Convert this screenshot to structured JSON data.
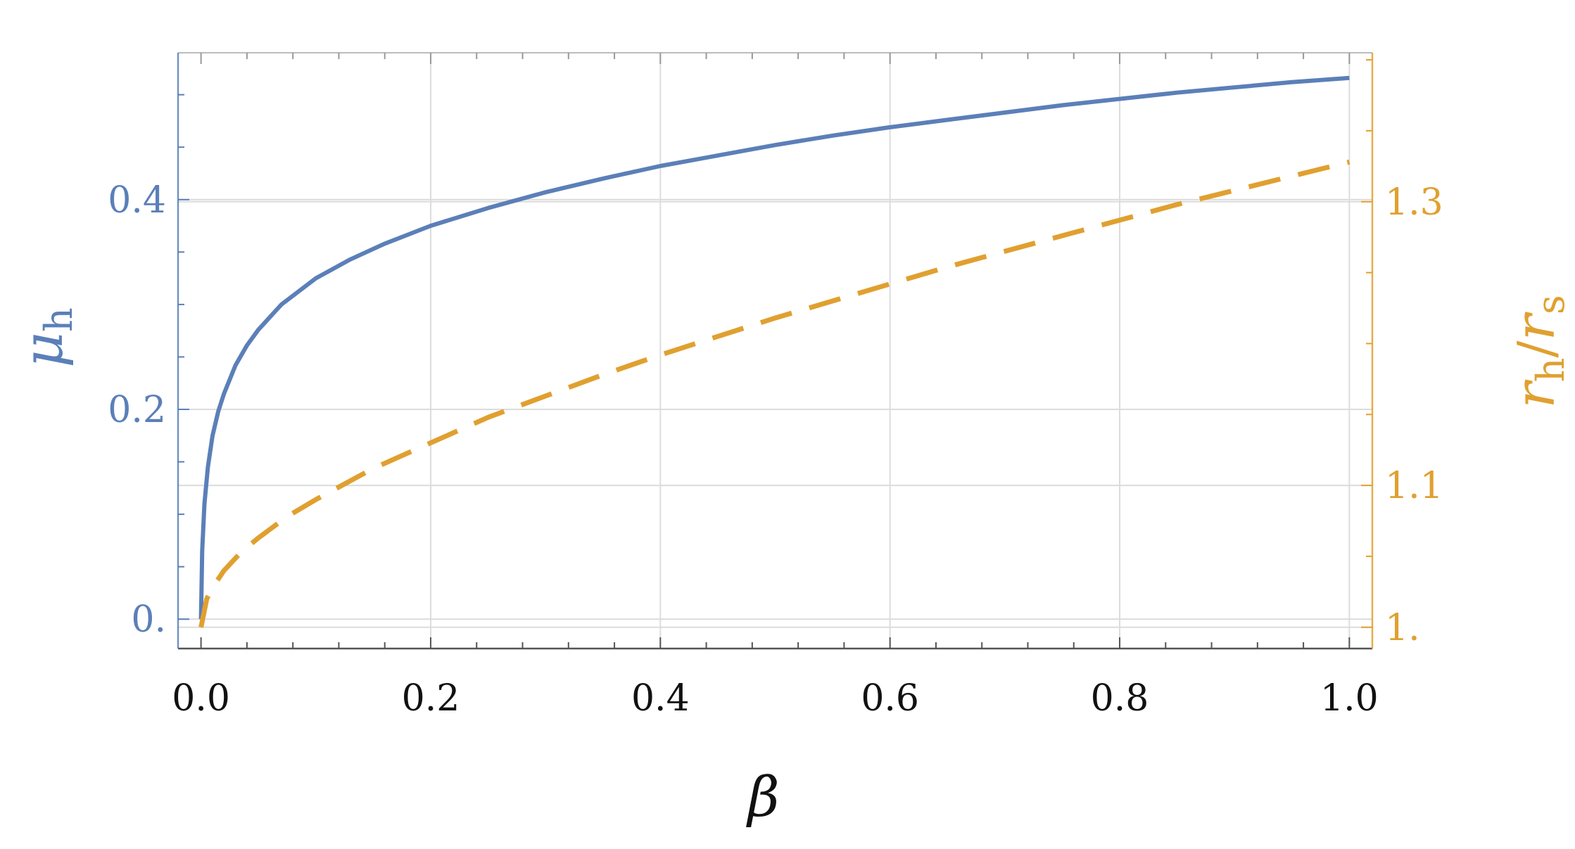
{
  "chart_data": {
    "type": "line",
    "title": "",
    "xlabel": "β",
    "ylabel_left": {
      "symbol": "μ",
      "subscript": "h"
    },
    "ylabel_right": {
      "num": "r",
      "num_sub": "h",
      "slash": "/",
      "den": "r",
      "den_sub": "s"
    },
    "xlim": [
      -0.02,
      1.02
    ],
    "ylim_left": [
      -0.028,
      0.54
    ],
    "ylim_right": [
      0.985,
      1.405
    ],
    "x_ticks": [
      0.0,
      0.2,
      0.4,
      0.6,
      0.8,
      1.0
    ],
    "x_tick_labels": [
      "0.0",
      "0.2",
      "0.4",
      "0.6",
      "0.8",
      "1.0"
    ],
    "y_left_ticks": [
      0.0,
      0.2,
      0.4
    ],
    "y_left_tick_labels": [
      "0.",
      "0.2",
      "0.4"
    ],
    "y_right_ticks": [
      1.0,
      1.1,
      1.3
    ],
    "y_right_tick_labels": [
      "1.",
      "1.1",
      "1.3"
    ],
    "grid": true,
    "series": [
      {
        "axis": "left",
        "style": "solid",
        "color": "#5b7fb8",
        "x": [
          0.0,
          0.001,
          0.003,
          0.006,
          0.01,
          0.015,
          0.02,
          0.03,
          0.04,
          0.05,
          0.07,
          0.1,
          0.13,
          0.16,
          0.2,
          0.25,
          0.3,
          0.35,
          0.4,
          0.45,
          0.5,
          0.55,
          0.6,
          0.65,
          0.7,
          0.75,
          0.8,
          0.85,
          0.9,
          0.95,
          1.0
        ],
        "y": [
          0.0,
          0.065,
          0.11,
          0.145,
          0.175,
          0.198,
          0.215,
          0.242,
          0.261,
          0.276,
          0.3,
          0.325,
          0.343,
          0.358,
          0.375,
          0.392,
          0.407,
          0.42,
          0.432,
          0.442,
          0.452,
          0.461,
          0.469,
          0.476,
          0.483,
          0.49,
          0.496,
          0.502,
          0.507,
          0.512,
          0.516
        ]
      },
      {
        "axis": "right",
        "style": "dashed",
        "color": "#e0a030",
        "x": [
          0.0,
          0.005,
          0.01,
          0.02,
          0.035,
          0.05,
          0.075,
          0.1,
          0.15,
          0.2,
          0.25,
          0.3,
          0.35,
          0.4,
          0.45,
          0.5,
          0.55,
          0.6,
          0.65,
          0.7,
          0.75,
          0.8,
          0.85,
          0.9,
          0.95,
          1.0
        ],
        "y": [
          1.0,
          1.02,
          1.028,
          1.04,
          1.053,
          1.063,
          1.078,
          1.09,
          1.112,
          1.13,
          1.148,
          1.163,
          1.178,
          1.192,
          1.205,
          1.218,
          1.23,
          1.242,
          1.254,
          1.265,
          1.276,
          1.287,
          1.298,
          1.308,
          1.318,
          1.328
        ]
      }
    ],
    "colors": {
      "left_axis": "#5b7fb8",
      "right_axis": "#e0a030",
      "grid": "#dcdcdc",
      "frame": "#8a8a8a"
    }
  }
}
